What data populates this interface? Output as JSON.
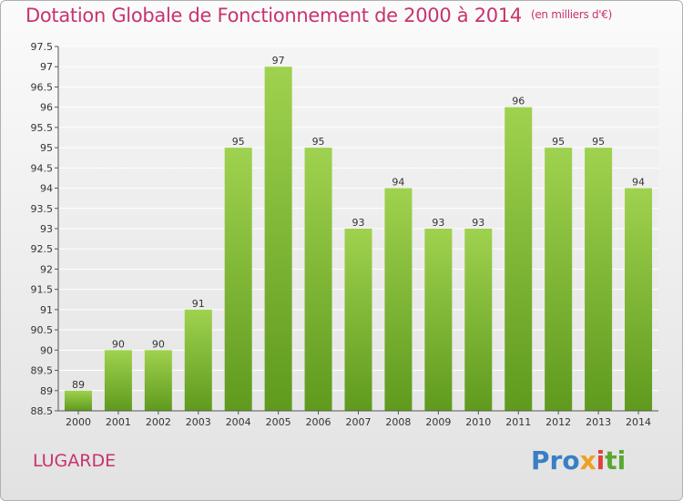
{
  "chart_data": {
    "type": "bar",
    "title": "Dotation Globale de Fonctionnement de 2000 à 2014",
    "unit_note": "(en milliers d'€)",
    "categories": [
      "2000",
      "2001",
      "2002",
      "2003",
      "2004",
      "2005",
      "2006",
      "2007",
      "2008",
      "2009",
      "2010",
      "2011",
      "2012",
      "2013",
      "2014"
    ],
    "values": [
      89,
      90,
      90,
      91,
      95,
      97,
      95,
      93,
      94,
      93,
      93,
      96,
      95,
      95,
      94
    ],
    "ylim": [
      88.5,
      97.5
    ],
    "yticks": [
      "88.5",
      "89",
      "89.5",
      "90",
      "90.5",
      "91",
      "91.5",
      "92",
      "92.5",
      "93",
      "93.5",
      "94",
      "94.5",
      "95",
      "95.5",
      "96",
      "96.5",
      "97",
      "97.5"
    ],
    "grid": true,
    "bar_color": "#8cc63f"
  },
  "commune": "LUGARDE",
  "logo": {
    "p1": "Pro",
    "p2": "x",
    "p3": "i",
    "p4": "ti"
  }
}
